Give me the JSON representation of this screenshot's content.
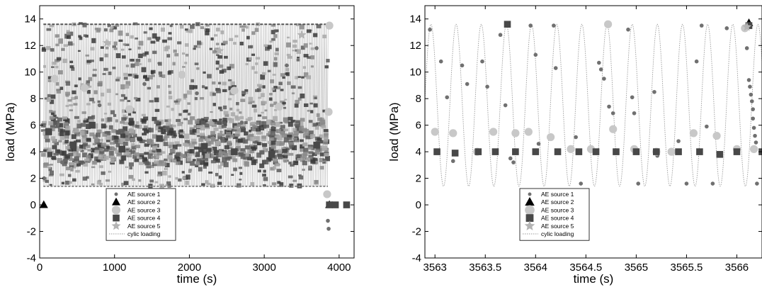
{
  "chart_data": [
    {
      "type": "scatter",
      "title": "",
      "xlabel": "time (s)",
      "ylabel": "load (MPa)",
      "xlim": [
        0,
        4200
      ],
      "ylim": [
        -4,
        15
      ],
      "xticks": [
        0,
        1000,
        2000,
        3000,
        4000
      ],
      "yticks": [
        -4,
        -2,
        0,
        2,
        4,
        6,
        8,
        10,
        12,
        14
      ],
      "xtick_labels": [
        "0",
        "1000",
        "2000",
        "3000",
        "4000"
      ],
      "ytick_labels": [
        "-4",
        "-2",
        "0",
        "2",
        "4",
        "6",
        "8",
        "10",
        "12",
        "14"
      ],
      "grid": false,
      "legend_position": "bottom-center",
      "cyclic_loading": {
        "min": 1.4,
        "max": 13.6,
        "start": 50,
        "end": 3850
      },
      "series": [
        {
          "name": "AE source 1",
          "marker": "dot",
          "color": "#707070",
          "points": [
            [
              60,
              2.0
            ],
            [
              300,
              3.2
            ],
            [
              800,
              7.5
            ],
            [
              1400,
              9.1
            ],
            [
              2100,
              8.4
            ],
            [
              2700,
              6.2
            ],
            [
              3300,
              10.5
            ],
            [
              3700,
              11.8
            ],
            [
              3850,
              -1.2
            ],
            [
              3860,
              -1.8
            ],
            [
              3860,
              0.8
            ]
          ]
        },
        {
          "name": "AE source 2",
          "marker": "triangle",
          "color": "#000000",
          "points": [
            [
              55,
              0.0
            ],
            [
              3870,
              0.0
            ]
          ]
        },
        {
          "name": "AE source 3",
          "marker": "circle",
          "color": "#c8c8c8",
          "points": [
            [
              200,
              9.5
            ],
            [
              600,
              8.8
            ],
            [
              1200,
              7.2
            ],
            [
              1900,
              9.8
            ],
            [
              2600,
              8.6
            ],
            [
              3200,
              7.4
            ],
            [
              3840,
              0.8
            ],
            [
              3860,
              7.0
            ],
            [
              3870,
              13.5
            ]
          ]
        },
        {
          "name": "AE source 4",
          "marker": "square",
          "color": "#484848",
          "points": [
            [
              120,
              5.5
            ],
            [
              450,
              4.5
            ],
            [
              700,
              6.0
            ],
            [
              1100,
              4.2
            ],
            [
              1600,
              5.0
            ],
            [
              2200,
              4.4
            ],
            [
              2600,
              4.0
            ],
            [
              3100,
              3.8
            ],
            [
              3700,
              4.5
            ],
            [
              3870,
              0.0
            ],
            [
              3950,
              0.0
            ],
            [
              4100,
              0.0
            ]
          ]
        },
        {
          "name": "AE source 5",
          "marker": "star",
          "color": "#b4b4b4",
          "points": [
            [
              900,
              12.2
            ],
            [
              2400,
              11.6
            ],
            [
              3500,
              12.8
            ]
          ]
        }
      ],
      "legend_extra": "cylic loading"
    },
    {
      "type": "scatter",
      "title": "",
      "xlabel": "time (s)",
      "ylabel": "load (MPa)",
      "xlim": [
        3562.9,
        3566.25
      ],
      "ylim": [
        -4,
        15
      ],
      "xticks": [
        3563,
        3563.5,
        3564,
        3564.5,
        3565,
        3565.5,
        3566
      ],
      "yticks": [
        -4,
        -2,
        0,
        2,
        4,
        6,
        8,
        10,
        12,
        14
      ],
      "xtick_labels": [
        "3563",
        "3563.5",
        "3564",
        "3564.5",
        "3565",
        "3565.5",
        "3566"
      ],
      "ytick_labels": [
        "-4",
        "-2",
        "0",
        "2",
        "4",
        "6",
        "8",
        "10",
        "12",
        "14"
      ],
      "grid": false,
      "legend_position": "bottom-left",
      "cyclic_loading": {
        "min": 1.4,
        "max": 13.6,
        "period": 0.25,
        "phase": 3562.96
      },
      "series": [
        {
          "name": "AE source 1",
          "marker": "dot",
          "color": "#707070",
          "points": [
            [
              3562.95,
              13.2
            ],
            [
              3563.06,
              10.8
            ],
            [
              3563.12,
              8.1
            ],
            [
              3563.18,
              3.3
            ],
            [
              3563.27,
              10.5
            ],
            [
              3563.32,
              9.1
            ],
            [
              3563.47,
              10.8
            ],
            [
              3563.52,
              8.9
            ],
            [
              3563.65,
              12.8
            ],
            [
              3563.7,
              7.5
            ],
            [
              3563.75,
              3.5
            ],
            [
              3563.78,
              3.2
            ],
            [
              3563.95,
              13.5
            ],
            [
              3564.0,
              11.3
            ],
            [
              3564.03,
              4.6
            ],
            [
              3564.18,
              13.5
            ],
            [
              3564.2,
              10.3
            ],
            [
              3564.22,
              4.0
            ],
            [
              3564.4,
              5.1
            ],
            [
              3564.45,
              1.6
            ],
            [
              3564.63,
              10.7
            ],
            [
              3564.65,
              10.2
            ],
            [
              3564.68,
              9.5
            ],
            [
              3564.73,
              7.4
            ],
            [
              3564.77,
              6.9
            ],
            [
              3564.92,
              13.2
            ],
            [
              3564.96,
              8.1
            ],
            [
              3564.98,
              6.9
            ],
            [
              3565.02,
              1.6
            ],
            [
              3565.18,
              8.5
            ],
            [
              3565.21,
              3.7
            ],
            [
              3565.42,
              4.8
            ],
            [
              3565.5,
              1.6
            ],
            [
              3565.6,
              10.8
            ],
            [
              3565.65,
              13.5
            ],
            [
              3565.7,
              5.9
            ],
            [
              3565.76,
              1.6
            ],
            [
              3565.9,
              13.3
            ],
            [
              3566.1,
              11.8
            ],
            [
              3566.12,
              9.4
            ],
            [
              3566.13,
              8.9
            ],
            [
              3566.14,
              8.3
            ],
            [
              3566.15,
              7.8
            ],
            [
              3566.16,
              7.2
            ],
            [
              3566.16,
              6.5
            ],
            [
              3566.17,
              5.8
            ],
            [
              3566.18,
              5.2
            ],
            [
              3566.19,
              4.7
            ],
            [
              3566.2,
              1.6
            ]
          ]
        },
        {
          "name": "AE source 2",
          "marker": "triangle",
          "color": "#000000",
          "points": [
            [
              3566.12,
              13.7
            ]
          ]
        },
        {
          "name": "AE source 3",
          "marker": "circle",
          "color": "#c8c8c8",
          "points": [
            [
              3563.0,
              5.5
            ],
            [
              3563.18,
              5.4
            ],
            [
              3563.42,
              4.0
            ],
            [
              3563.58,
              5.5
            ],
            [
              3563.8,
              5.4
            ],
            [
              3563.93,
              5.5
            ],
            [
              3564.15,
              5.1
            ],
            [
              3564.35,
              4.2
            ],
            [
              3564.55,
              4.2
            ],
            [
              3564.72,
              13.6
            ],
            [
              3564.77,
              5.7
            ],
            [
              3564.98,
              4.2
            ],
            [
              3565.2,
              4.0
            ],
            [
              3565.35,
              4.0
            ],
            [
              3565.57,
              5.4
            ],
            [
              3565.8,
              5.2
            ],
            [
              3566.0,
              4.2
            ],
            [
              3566.08,
              13.3
            ],
            [
              3566.17,
              4.2
            ]
          ]
        },
        {
          "name": "AE source 4",
          "marker": "square",
          "color": "#484848",
          "points": [
            [
              3563.02,
              4.0
            ],
            [
              3563.2,
              3.9
            ],
            [
              3563.43,
              4.0
            ],
            [
              3563.6,
              4.0
            ],
            [
              3563.72,
              13.6
            ],
            [
              3563.8,
              4.0
            ],
            [
              3564.0,
              4.0
            ],
            [
              3564.22,
              4.0
            ],
            [
              3564.43,
              4.0
            ],
            [
              3564.6,
              4.0
            ],
            [
              3564.8,
              4.0
            ],
            [
              3565.0,
              4.0
            ],
            [
              3565.2,
              4.0
            ],
            [
              3565.42,
              4.0
            ],
            [
              3565.63,
              4.0
            ],
            [
              3565.83,
              3.8
            ],
            [
              3566.0,
              4.0
            ],
            [
              3566.12,
              13.5
            ],
            [
              3566.25,
              4.0
            ]
          ]
        },
        {
          "name": "AE source 5",
          "marker": "star",
          "color": "#b4b4b4",
          "points": [
            [
              3566.1,
              13.4
            ]
          ]
        }
      ],
      "legend_extra": "cylic loading"
    }
  ]
}
